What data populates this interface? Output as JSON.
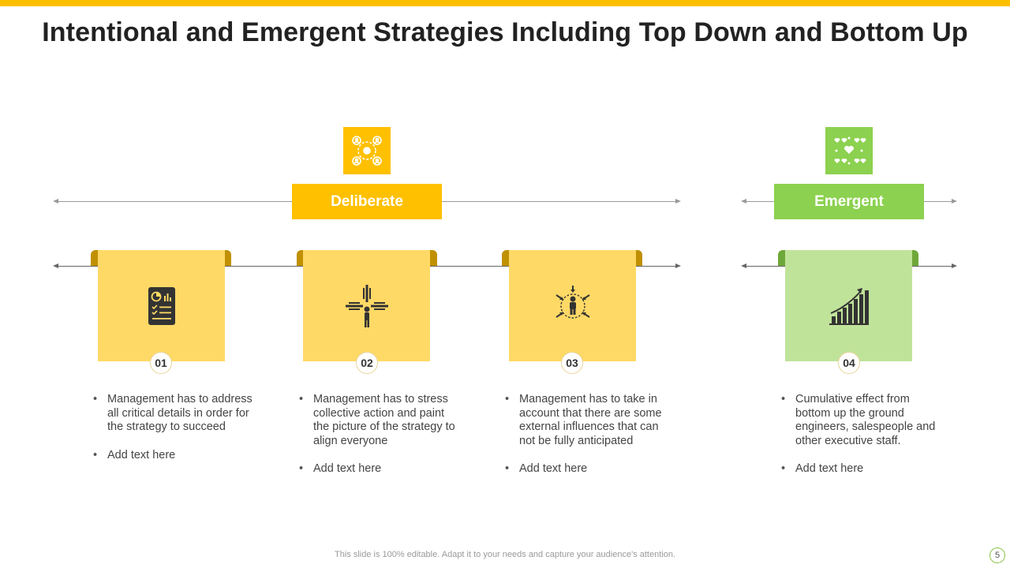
{
  "title": "Intentional and Emergent Strategies Including Top Down and Bottom Up",
  "colors": {
    "accent_yellow": "#FFC000",
    "card_yellow": "#FFD966",
    "tab_yellow": "#C09000",
    "accent_green": "#8CD14F",
    "card_green": "#C0E39A",
    "tab_green": "#6FA83A",
    "icon_dark": "#333333"
  },
  "categories": [
    {
      "label": "Deliberate",
      "icon": "people-network-icon"
    },
    {
      "label": "Emergent",
      "icon": "heart-network-icon"
    }
  ],
  "steps": [
    {
      "number": "01",
      "icon": "report-document-icon",
      "bullets": [
        "Management has to address all critical details in order for the strategy to succeed",
        "Add text here"
      ]
    },
    {
      "number": "02",
      "icon": "collective-action-icon",
      "bullets": [
        "Management has to stress collective action and paint the picture of the strategy to align everyone",
        "Add text here"
      ]
    },
    {
      "number": "03",
      "icon": "external-influences-icon",
      "bullets": [
        "Management has to take in account that there are some external influences that can not be fully anticipated",
        "Add text here"
      ]
    },
    {
      "number": "04",
      "icon": "growth-chart-icon",
      "bullets": [
        "Cumulative effect from bottom up the ground engineers, salespeople and other executive staff.",
        "Add text here"
      ]
    }
  ],
  "footer": "This slide is 100% editable. Adapt it to your needs and capture your audience's attention.",
  "page_number": "5"
}
